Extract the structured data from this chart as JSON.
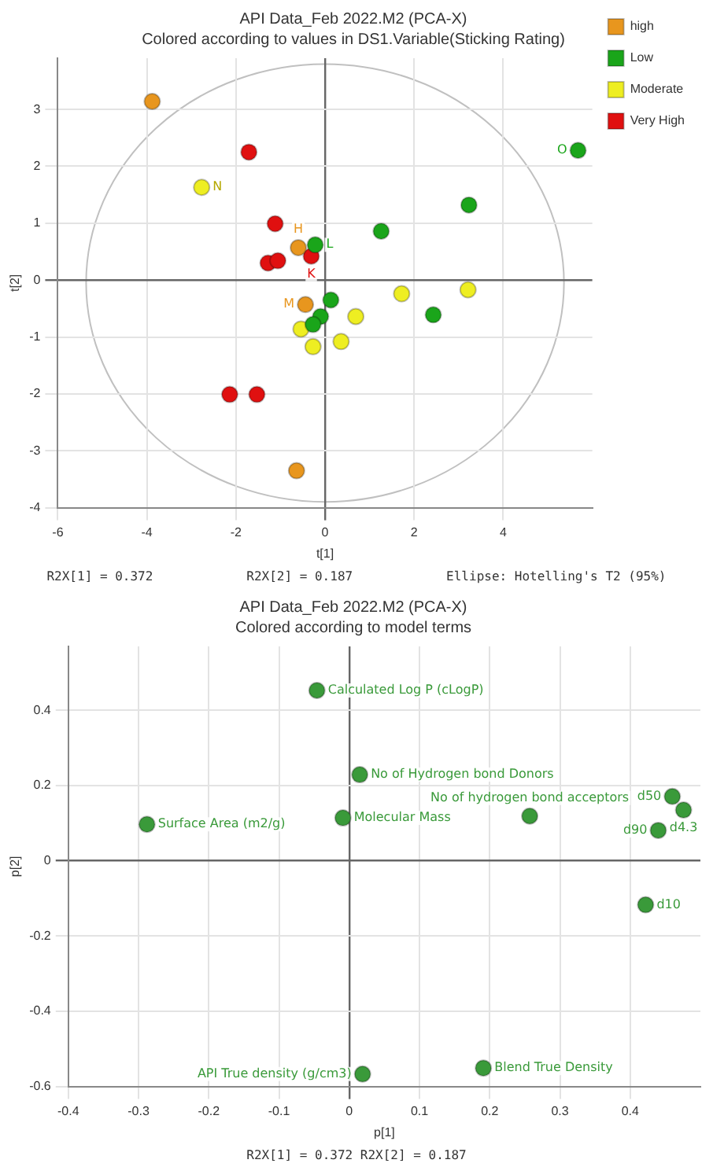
{
  "chart_data": [
    {
      "type": "scatter",
      "title": "API Data_Feb 2022.M2 (PCA-X)",
      "subtitle": "Colored according to values in DS1.Variable(Sticking Rating)",
      "xlabel": "t[1]",
      "ylabel": "t[2]",
      "xlim": [
        -6,
        6
      ],
      "ylim": [
        -4,
        3.9
      ],
      "xticks": [
        -6,
        -4,
        -2,
        0,
        2,
        4
      ],
      "yticks": [
        -4,
        -3,
        -2,
        -1,
        0,
        1,
        2,
        3
      ],
      "grid": true,
      "legend": "top right",
      "marker": "circle",
      "series": [
        {
          "name": "high",
          "color": "#e8961e",
          "x": [
            -3.88,
            -0.6,
            -0.44,
            -0.64
          ],
          "values": [
            3.14,
            0.57,
            -0.43,
            -3.35
          ]
        },
        {
          "name": "Low",
          "color": "#1aa51a",
          "x": [
            5.68,
            3.23,
            1.26,
            -0.22,
            0.13,
            -0.1,
            -0.27,
            2.43
          ],
          "values": [
            2.28,
            1.32,
            0.86,
            0.62,
            -0.35,
            -0.64,
            -0.78,
            -0.61
          ]
        },
        {
          "name": "Moderate",
          "color": "#eeee22",
          "x": [
            -2.77,
            -0.54,
            -0.27,
            0.36,
            0.69,
            1.72,
            3.21
          ],
          "values": [
            1.63,
            -0.86,
            -1.17,
            -1.08,
            -0.64,
            -0.24,
            -0.17
          ]
        },
        {
          "name": "Very High",
          "color": "#e01010",
          "x": [
            -1.71,
            -1.12,
            -0.31,
            -1.28,
            -1.06,
            -2.14,
            -1.53
          ],
          "values": [
            2.25,
            0.99,
            0.42,
            0.3,
            0.34,
            -2.01,
            -2.01
          ]
        }
      ],
      "annotations": [
        {
          "text": "N",
          "x": -2.77,
          "y": 1.63
        },
        {
          "text": "O",
          "x": 5.68,
          "y": 2.28
        },
        {
          "text": "H",
          "x": -0.6,
          "y": 0.57
        },
        {
          "text": "L",
          "x": -0.22,
          "y": 0.62
        },
        {
          "text": "K",
          "x": -0.31,
          "y": 0.42
        },
        {
          "text": "M",
          "x": -0.44,
          "y": -0.43
        },
        "R2X[1] = 0.372",
        "R2X[2] = 0.187",
        "Ellipse: Hotelling's T2 (95%)"
      ]
    },
    {
      "type": "scatter",
      "title": "API Data_Feb 2022.M2 (PCA-X)",
      "subtitle": "Colored according to model terms",
      "xlabel": "p[1]",
      "ylabel": "p[2]",
      "xlim": [
        -0.4,
        0.5
      ],
      "ylim": [
        -0.6,
        0.57
      ],
      "xticks": [
        -0.4,
        -0.3,
        -0.2,
        -0.1,
        0,
        0.1,
        0.2,
        0.3,
        0.4
      ],
      "yticks": [
        -0.6,
        -0.4,
        -0.2,
        0,
        0.2,
        0.4
      ],
      "grid": true,
      "marker": "circle",
      "series": [
        {
          "color": "#3a9a3a",
          "x": [
            -0.046,
            0.015,
            -0.288,
            -0.009,
            0.257,
            0.46,
            0.476,
            0.44,
            0.422,
            0.019,
            0.191
          ],
          "values": [
            0.453,
            0.229,
            0.097,
            0.114,
            0.119,
            0.171,
            0.135,
            0.081,
            -0.117,
            -0.567,
            -0.551
          ]
        }
      ],
      "annotations": [
        {
          "text": "Calculated Log P (cLogP)",
          "x": -0.046,
          "y": 0.453
        },
        {
          "text": "No of Hydrogen bond Donors",
          "x": 0.015,
          "y": 0.229
        },
        {
          "text": "Surface Area (m2/g)",
          "x": -0.288,
          "y": 0.097
        },
        {
          "text": "Molecular Mass",
          "x": -0.009,
          "y": 0.114
        },
        {
          "text": "No of hydrogen bond acceptors",
          "x": 0.257,
          "y": 0.119
        },
        {
          "text": "d50",
          "x": 0.46,
          "y": 0.171
        },
        {
          "text": "d4.3",
          "x": 0.476,
          "y": 0.135
        },
        {
          "text": "d90",
          "x": 0.44,
          "y": 0.081
        },
        {
          "text": "d10",
          "x": 0.422,
          "y": -0.117
        },
        {
          "text": "API True density (g/cm3)",
          "x": 0.019,
          "y": -0.567
        },
        {
          "text": "Blend True Density",
          "x": 0.191,
          "y": -0.551
        },
        "R2X[1] = 0.372 R2X[2] = 0.187"
      ]
    }
  ]
}
